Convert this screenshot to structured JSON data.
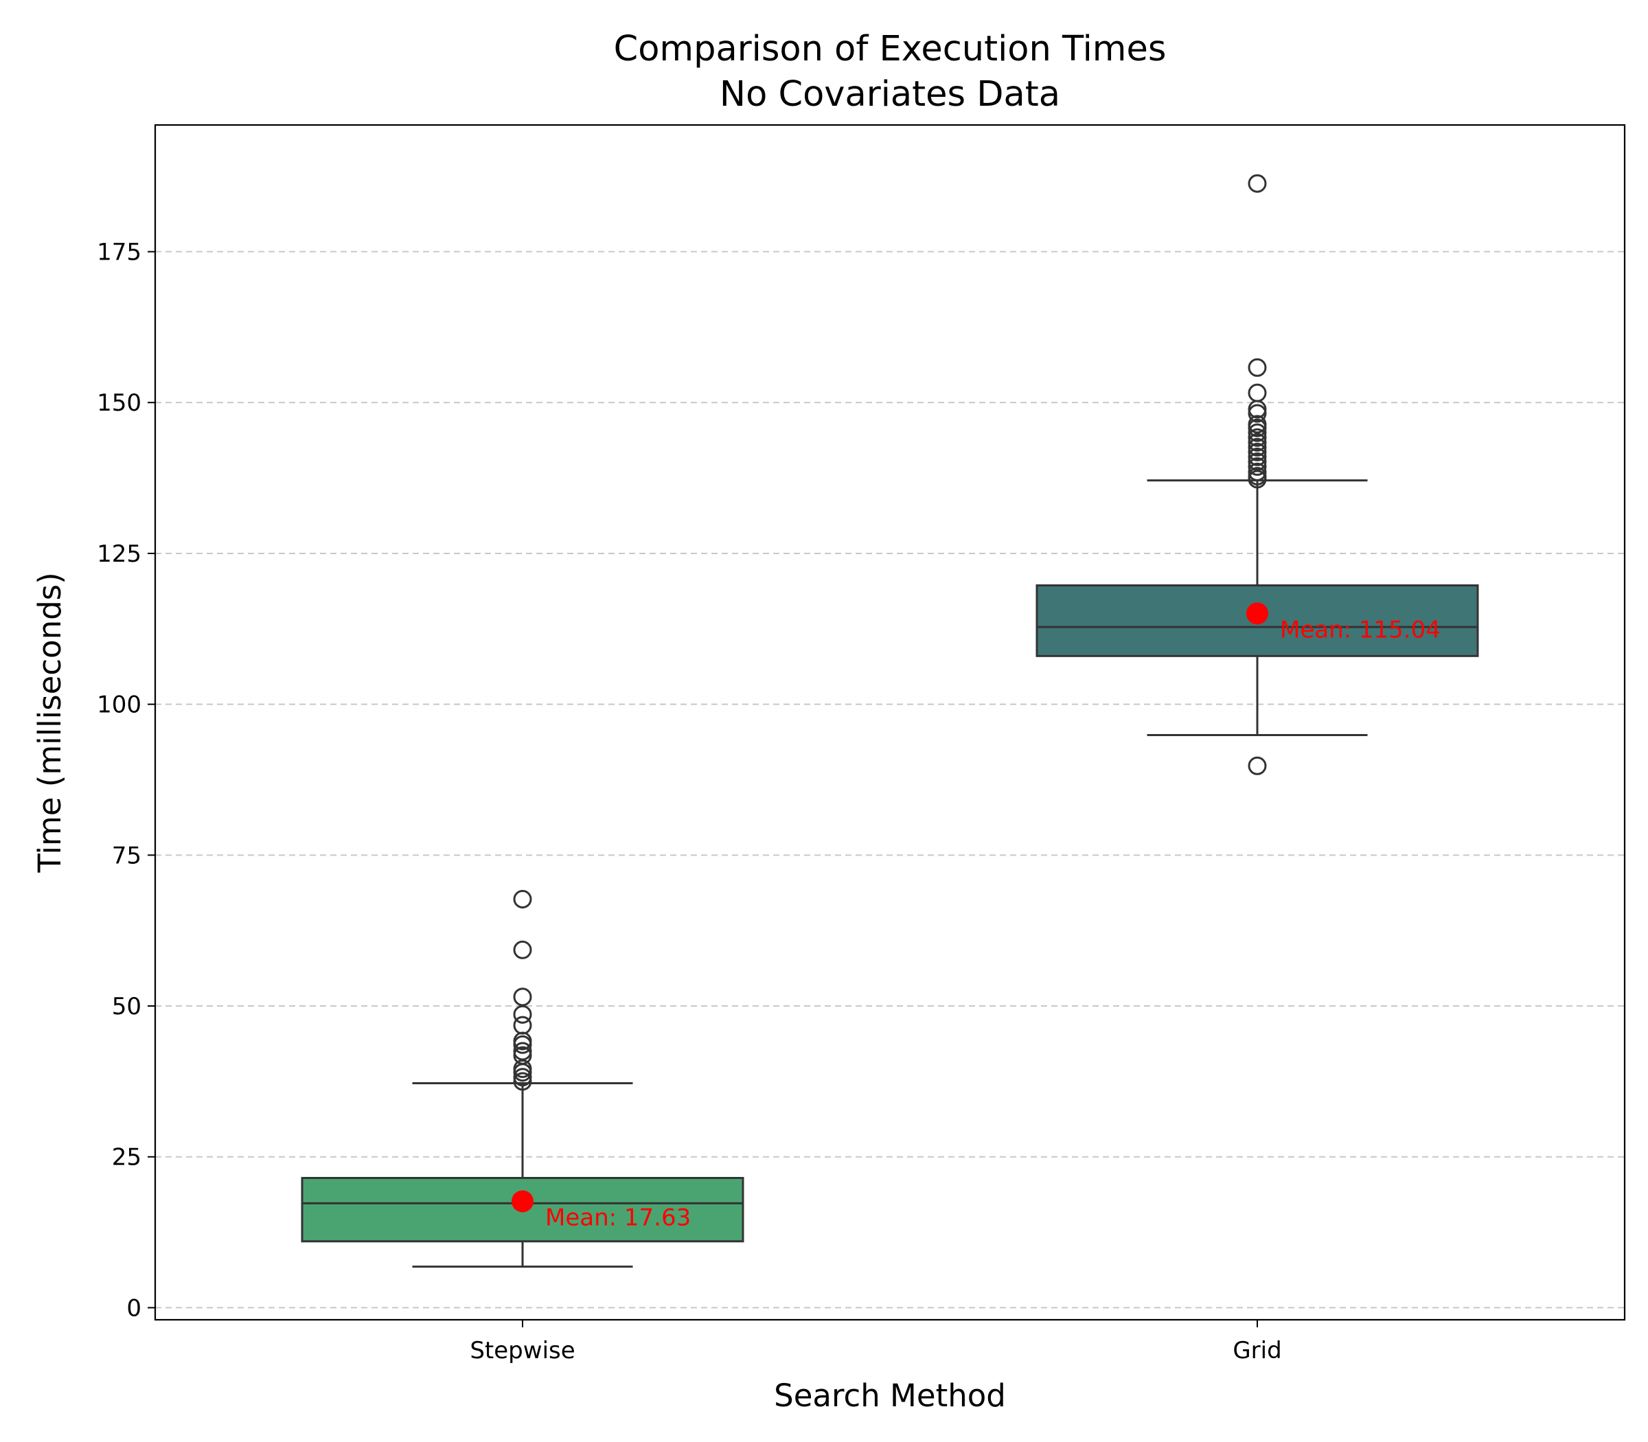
{
  "chart_data": {
    "type": "box",
    "title_lines": [
      "Comparison of Execution Times",
      "No Covariates Data"
    ],
    "xlabel": "Search Method",
    "ylabel": "Time (milliseconds)",
    "ylim": [
      -2,
      196
    ],
    "yticks": [
      0,
      25,
      50,
      75,
      100,
      125,
      150,
      175
    ],
    "grid": {
      "axis": "y",
      "style": "dashed"
    },
    "mean_color": "#ff0000",
    "edge_color": "#333333",
    "grid_color": "#c8c8c8",
    "categories": [
      {
        "name": "Stepwise",
        "color": "#4aa472",
        "whisker_low": 6.8,
        "q1": 11.0,
        "median": 17.3,
        "q3": 21.5,
        "whisker_high": 37.2,
        "mean": 17.63,
        "mean_label": "Mean: 17.63",
        "outliers": [
          37.5,
          38.2,
          39.0,
          39.6,
          41.8,
          42.5,
          43.6,
          44.2,
          46.8,
          48.6,
          51.5,
          59.3,
          67.7
        ]
      },
      {
        "name": "Grid",
        "color": "#3f7575",
        "whisker_low": 94.9,
        "q1": 108.0,
        "median": 112.8,
        "q3": 119.7,
        "whisker_high": 137.1,
        "mean": 115.04,
        "mean_label": "Mean: 115.04",
        "outliers": [
          89.8,
          137.3,
          137.8,
          138.5,
          139.4,
          140.2,
          141.0,
          141.8,
          142.6,
          143.4,
          144.2,
          145.0,
          145.8,
          146.4,
          148.2,
          148.9,
          151.6,
          155.8,
          186.3
        ]
      }
    ]
  }
}
